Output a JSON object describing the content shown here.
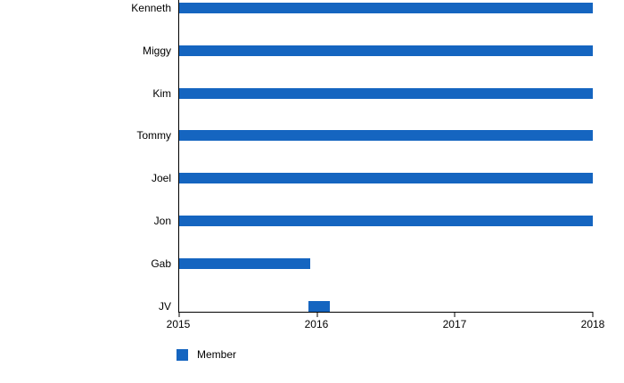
{
  "colors": {
    "bar": "#1565C0",
    "axis": "#000000",
    "text": "#000000",
    "background": "#ffffff"
  },
  "legend": {
    "label": "Member",
    "swatch_color": "#1565C0"
  },
  "chart_data": {
    "type": "bar",
    "orientation": "horizontal",
    "title": "",
    "xlabel": "",
    "ylabel": "",
    "categories": [
      "Kenneth",
      "Miggy",
      "Kim",
      "Tommy",
      "Joel",
      "Jon",
      "Gab",
      "JV"
    ],
    "series": [
      {
        "name": "Member",
        "color": "#1565C0",
        "ranges": [
          {
            "category": "Kenneth",
            "start": 2015,
            "end": 2018
          },
          {
            "category": "Miggy",
            "start": 2015,
            "end": 2018
          },
          {
            "category": "Kim",
            "start": 2015,
            "end": 2018
          },
          {
            "category": "Tommy",
            "start": 2015,
            "end": 2018
          },
          {
            "category": "Joel",
            "start": 2015,
            "end": 2018
          },
          {
            "category": "Jon",
            "start": 2015,
            "end": 2018
          },
          {
            "category": "Gab",
            "start": 2015,
            "end": 2015.95
          },
          {
            "category": "JV",
            "start": 2015.94,
            "end": 2016.09
          }
        ]
      }
    ],
    "xlim": [
      2015,
      2018
    ],
    "x_ticks": [
      "2015",
      "2016",
      "2017",
      "2018"
    ],
    "grid": false,
    "legend_position": "bottom-left"
  }
}
